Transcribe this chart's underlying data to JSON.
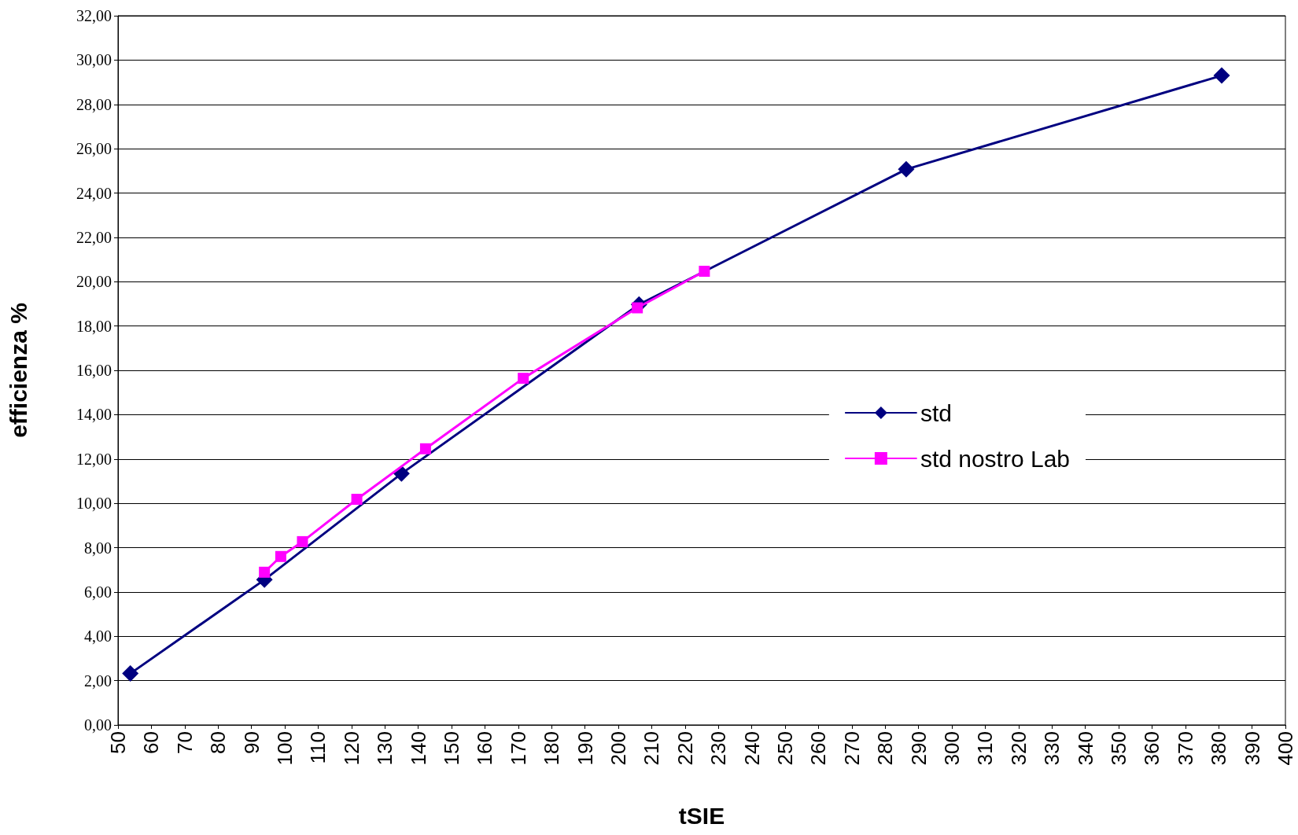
{
  "chart_data": {
    "type": "line",
    "xlabel": "tSIE",
    "ylabel": "efficienza %",
    "xlim": [
      50,
      400
    ],
    "xticks": [
      50,
      60,
      70,
      80,
      90,
      100,
      110,
      120,
      130,
      140,
      150,
      160,
      170,
      180,
      190,
      200,
      210,
      220,
      230,
      240,
      250,
      260,
      270,
      280,
      290,
      300,
      310,
      320,
      330,
      340,
      350,
      360,
      370,
      380,
      390,
      400
    ],
    "ylim": [
      0,
      32
    ],
    "yticks": [
      {
        "value": 0,
        "label": "0,00"
      },
      {
        "value": 2,
        "label": "2,00"
      },
      {
        "value": 4,
        "label": "4,00"
      },
      {
        "value": 6,
        "label": "6,00"
      },
      {
        "value": 8,
        "label": "8,00"
      },
      {
        "value": 10,
        "label": "10,00"
      },
      {
        "value": 12,
        "label": "12,00"
      },
      {
        "value": 14,
        "label": "14,00"
      },
      {
        "value": 16,
        "label": "16,00"
      },
      {
        "value": 18,
        "label": "18,00"
      },
      {
        "value": 20,
        "label": "20,00"
      },
      {
        "value": 22,
        "label": "22,00"
      },
      {
        "value": 24,
        "label": "24,00"
      },
      {
        "value": 26,
        "label": "26,00"
      },
      {
        "value": 28,
        "label": "28,00"
      },
      {
        "value": 30,
        "label": "30,00"
      },
      {
        "value": 32,
        "label": "32,00"
      }
    ],
    "grid": "y",
    "legend": "right",
    "line_style": "solid",
    "series": [
      {
        "name": "std",
        "color": "#000080",
        "marker": "diamond",
        "x": [
          53.7,
          93.9,
          135,
          206.2,
          286.3,
          380.9
        ],
        "values": [
          2.32,
          6.55,
          11.34,
          18.97,
          25.07,
          29.3
        ]
      },
      {
        "name": "std nostro Lab",
        "color": "#ff00ff",
        "marker": "square",
        "x": [
          93.9,
          98.8,
          105.3,
          121.6,
          142.2,
          171.5,
          205.7,
          225.8
        ],
        "values": [
          6.89,
          7.6,
          8.27,
          10.18,
          12.46,
          15.64,
          18.82,
          20.47
        ]
      }
    ]
  }
}
